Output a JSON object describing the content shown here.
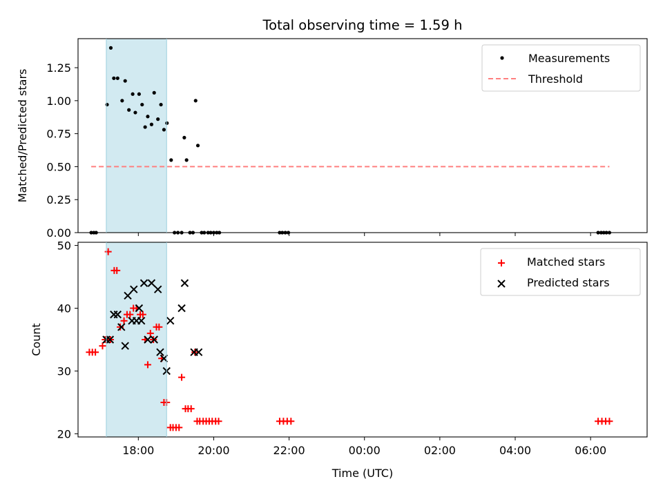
{
  "chart_data": {
    "type": "scatter",
    "title": "Total observing time = 1.59 h",
    "xlabel": "Time (UTC)",
    "x_unit": "hours since 16:00 UTC on first day",
    "xlim": [
      0.4,
      15.5
    ],
    "x_ticks": [
      {
        "value": 2,
        "label": "18:00"
      },
      {
        "value": 4,
        "label": "20:00"
      },
      {
        "value": 6,
        "label": "22:00"
      },
      {
        "value": 8,
        "label": "00:00"
      },
      {
        "value": 10,
        "label": "02:00"
      },
      {
        "value": 12,
        "label": "04:00"
      },
      {
        "value": 14,
        "label": "06:00"
      }
    ],
    "highlight_span": [
      1.15,
      2.75
    ],
    "highlight_color": "#add8e6",
    "panels": [
      {
        "ylabel": "Matched/Predicted stars",
        "ylim": [
          0,
          1.47
        ],
        "y_ticks": [
          {
            "value": 0,
            "label": "0.00"
          },
          {
            "value": 0.25,
            "label": "0.25"
          },
          {
            "value": 0.5,
            "label": "0.50"
          },
          {
            "value": 0.75,
            "label": "0.75"
          },
          {
            "value": 1.0,
            "label": "1.00"
          },
          {
            "value": 1.25,
            "label": "1.25"
          }
        ],
        "series": [
          {
            "name": "Measurements",
            "marker": "dot",
            "color": "#000000",
            "x": [
              0.75,
              0.82,
              0.88,
              1.17,
              1.27,
              1.35,
              1.45,
              1.57,
              1.65,
              1.75,
              1.85,
              1.92,
              2.02,
              2.1,
              2.18,
              2.25,
              2.35,
              2.42,
              2.52,
              2.6,
              2.68,
              2.76,
              2.87,
              2.96,
              3.05,
              3.15,
              3.22,
              3.28,
              3.37,
              3.45,
              3.52,
              3.58,
              3.68,
              3.75,
              3.85,
              3.92,
              4.0,
              4.08,
              4.15,
              5.75,
              5.82,
              5.9,
              5.98,
              14.2,
              14.28,
              14.35,
              14.42,
              14.5
            ],
            "y": [
              0,
              0,
              0,
              0.97,
              1.4,
              1.17,
              1.17,
              1.0,
              1.15,
              0.93,
              1.05,
              0.91,
              1.05,
              0.97,
              0.8,
              0.88,
              0.82,
              1.06,
              0.86,
              0.97,
              0.78,
              0.83,
              0.55,
              0,
              0,
              0,
              0.72,
              0.55,
              0,
              0,
              1.0,
              0.66,
              0,
              0,
              0,
              0,
              0,
              0,
              0,
              0,
              0,
              0,
              0,
              0,
              0,
              0,
              0,
              0
            ]
          },
          {
            "name": "Threshold",
            "marker": "dashed-line",
            "color": "#ff7f7f",
            "x": [
              0.75,
              14.5
            ],
            "y": [
              0.5,
              0.5
            ]
          }
        ],
        "legend": {
          "location": "top-right",
          "entries": [
            "Measurements",
            "Threshold"
          ]
        }
      },
      {
        "ylabel": "Count",
        "ylim": [
          19.5,
          50.5
        ],
        "y_ticks": [
          {
            "value": 20,
            "label": "20"
          },
          {
            "value": 30,
            "label": "30"
          },
          {
            "value": 40,
            "label": "40"
          },
          {
            "value": 50,
            "label": "50"
          }
        ],
        "series": [
          {
            "name": "Matched stars",
            "marker": "plus",
            "color": "#ff0000",
            "x": [
              0.7,
              0.78,
              0.86,
              1.05,
              1.12,
              1.2,
              1.26,
              1.36,
              1.43,
              1.52,
              1.62,
              1.7,
              1.78,
              1.87,
              1.95,
              2.05,
              2.12,
              2.18,
              2.25,
              2.32,
              2.4,
              2.48,
              2.55,
              2.62,
              2.68,
              2.75,
              2.85,
              2.92,
              3.0,
              3.08,
              3.15,
              3.25,
              3.32,
              3.4,
              3.5,
              3.56,
              3.63,
              3.72,
              3.8,
              3.88,
              3.96,
              4.05,
              4.13,
              5.75,
              5.85,
              5.95,
              6.05,
              14.2,
              14.3,
              14.4,
              14.5
            ],
            "y": [
              33,
              33,
              33,
              34,
              35,
              49,
              35,
              46,
              46,
              37,
              38,
              39,
              39,
              40,
              40,
              39,
              39,
              35,
              31,
              36,
              35,
              37,
              37,
              32,
              25,
              25,
              21,
              21,
              21,
              21,
              29,
              24,
              24,
              24,
              33,
              22,
              22,
              22,
              22,
              22,
              22,
              22,
              22,
              22,
              22,
              22,
              22,
              22,
              22,
              22,
              22
            ]
          },
          {
            "name": "Predicted stars",
            "marker": "x",
            "color": "#000000",
            "x": [
              1.15,
              1.25,
              1.35,
              1.45,
              1.55,
              1.65,
              1.72,
              1.83,
              1.88,
              1.95,
              2.02,
              2.08,
              2.15,
              2.25,
              2.35,
              2.42,
              2.52,
              2.58,
              2.68,
              2.75,
              2.85,
              3.15,
              3.23,
              3.48,
              3.6
            ],
            "y": [
              35,
              35,
              39,
              39,
              37,
              34,
              42,
              38,
              43,
              38,
              40,
              38,
              44,
              35,
              44,
              35,
              43,
              33,
              32,
              30,
              38,
              40,
              44,
              33,
              33
            ]
          }
        ],
        "legend": {
          "location": "top-right",
          "entries": [
            "Matched stars",
            "Predicted stars"
          ]
        }
      }
    ]
  }
}
